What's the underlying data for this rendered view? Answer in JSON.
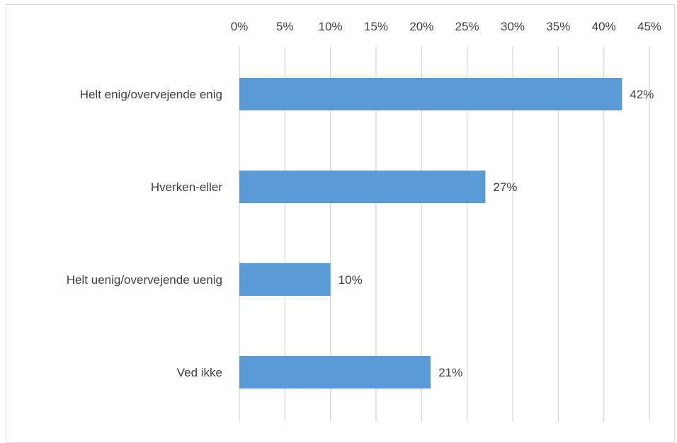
{
  "chart_data": {
    "type": "bar",
    "orientation": "horizontal",
    "categories": [
      "Helt enig/overvejende enig",
      "Hverken-eller",
      "Helt uenig/overvejende uenig",
      "Ved ikke"
    ],
    "values": [
      42,
      27,
      10,
      21
    ],
    "data_labels": [
      "42%",
      "27%",
      "10%",
      "21%"
    ],
    "xlim": [
      0,
      45
    ],
    "x_ticks": [
      0,
      5,
      10,
      15,
      20,
      25,
      30,
      35,
      40,
      45
    ],
    "x_tick_labels": [
      "0%",
      "5%",
      "10%",
      "15%",
      "20%",
      "25%",
      "30%",
      "35%",
      "40%",
      "45%"
    ],
    "x_axis_position": "top",
    "grid": true,
    "legend": false,
    "title": "",
    "xlabel": "",
    "ylabel": "",
    "colors": {
      "bar": "#5b9bd5",
      "grid": "#d9d9d9",
      "text": "#404040"
    }
  }
}
